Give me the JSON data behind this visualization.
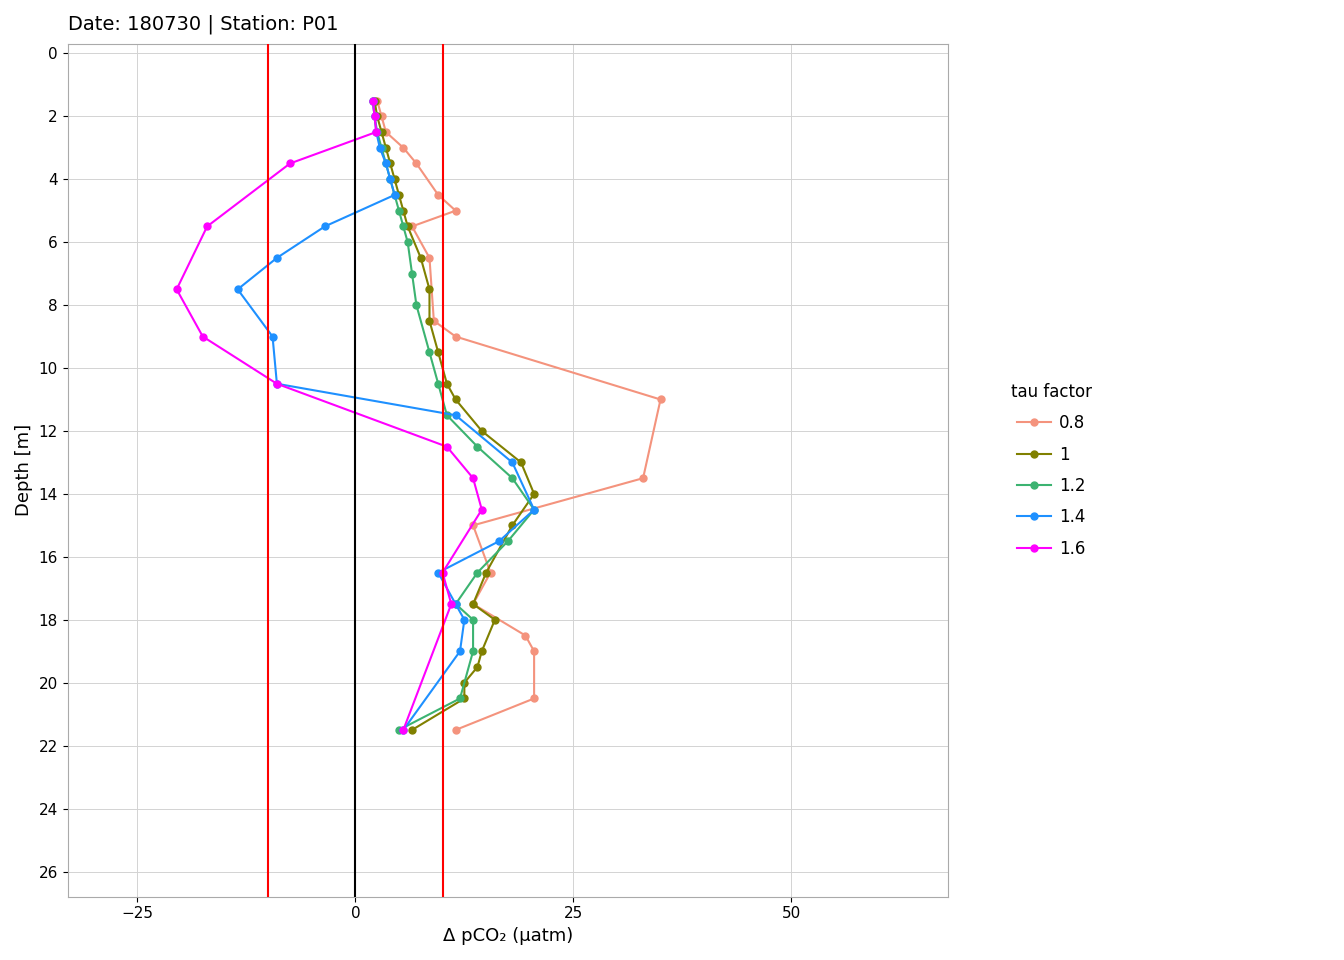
{
  "title": "Date: 180730 | Station: P01",
  "xlabel": "Δ pCO₂ (µatm)",
  "ylabel": "Depth [m]",
  "xlim": [
    -33,
    68
  ],
  "ylim": [
    26.8,
    -0.3
  ],
  "xticks": [
    -25,
    0,
    25,
    50
  ],
  "yticks": [
    0,
    2,
    4,
    6,
    8,
    10,
    12,
    14,
    16,
    18,
    20,
    22,
    24,
    26
  ],
  "vline_black": 0,
  "vlines_red": [
    -10,
    10
  ],
  "legend_title": "tau factor",
  "title_fontsize": 14,
  "axis_fontsize": 13,
  "tick_fontsize": 11,
  "legend_fontsize": 12,
  "grid_color": "#d3d3d3",
  "background": "#ffffff",
  "series": [
    {
      "label": "0.8",
      "color": "#F4937D",
      "depths": [
        1.5,
        2.0,
        2.5,
        3.0,
        3.5,
        4.5,
        5.0,
        5.5,
        6.5,
        8.5,
        9.0,
        11.0,
        13.5,
        15.0,
        16.5,
        17.5,
        18.5,
        19.0,
        20.5,
        21.5
      ],
      "values": [
        2.5,
        3.0,
        3.5,
        5.5,
        7.0,
        9.5,
        11.5,
        6.5,
        8.5,
        9.0,
        11.5,
        35.0,
        33.0,
        13.5,
        15.5,
        13.5,
        19.5,
        20.5,
        20.5,
        11.5
      ]
    },
    {
      "label": "1",
      "color": "#808000",
      "depths": [
        1.5,
        2.0,
        2.5,
        3.0,
        3.5,
        4.0,
        4.5,
        5.0,
        5.5,
        6.5,
        7.5,
        8.5,
        9.5,
        10.5,
        11.0,
        12.0,
        13.0,
        14.0,
        15.0,
        16.5,
        17.5,
        18.0,
        19.0,
        19.5,
        20.0,
        20.5,
        21.5
      ],
      "values": [
        2.2,
        2.5,
        3.0,
        3.5,
        4.0,
        4.5,
        5.0,
        5.5,
        6.0,
        7.5,
        8.5,
        8.5,
        9.5,
        10.5,
        11.5,
        14.5,
        19.0,
        20.5,
        18.0,
        15.0,
        13.5,
        16.0,
        14.5,
        14.0,
        12.5,
        12.5,
        6.5
      ]
    },
    {
      "label": "1.2",
      "color": "#3CB371",
      "depths": [
        1.5,
        2.0,
        2.5,
        3.0,
        3.5,
        4.0,
        4.5,
        5.0,
        5.5,
        6.0,
        7.0,
        8.0,
        9.5,
        10.5,
        11.5,
        12.5,
        13.5,
        14.5,
        15.5,
        16.5,
        17.5,
        18.0,
        19.0,
        20.5,
        21.5
      ],
      "values": [
        2.0,
        2.2,
        2.5,
        3.0,
        3.5,
        4.0,
        4.5,
        5.0,
        5.5,
        6.0,
        6.5,
        7.0,
        8.5,
        9.5,
        10.5,
        14.0,
        18.0,
        20.5,
        17.5,
        14.0,
        11.5,
        13.5,
        13.5,
        12.0,
        5.0
      ]
    },
    {
      "label": "1.4",
      "color": "#1E90FF",
      "depths": [
        1.5,
        2.0,
        2.5,
        3.0,
        3.5,
        4.0,
        4.5,
        5.5,
        6.5,
        7.5,
        9.0,
        10.5,
        11.5,
        13.0,
        14.5,
        15.5,
        16.5,
        17.5,
        18.0,
        19.0,
        21.5
      ],
      "values": [
        2.0,
        2.2,
        2.4,
        2.8,
        3.5,
        4.0,
        4.5,
        -3.5,
        -9.0,
        -13.5,
        -9.5,
        -9.0,
        11.5,
        18.0,
        20.5,
        16.5,
        9.5,
        11.5,
        12.5,
        12.0,
        5.5
      ]
    },
    {
      "label": "1.6",
      "color": "#FF00FF",
      "depths": [
        1.5,
        2.0,
        2.5,
        3.5,
        5.5,
        7.5,
        9.0,
        10.5,
        12.5,
        13.5,
        14.5,
        16.5,
        17.5,
        21.5
      ],
      "values": [
        2.0,
        2.2,
        2.4,
        -7.5,
        -17.0,
        -20.5,
        -17.5,
        -9.0,
        10.5,
        13.5,
        14.5,
        10.0,
        11.0,
        5.5
      ]
    }
  ]
}
